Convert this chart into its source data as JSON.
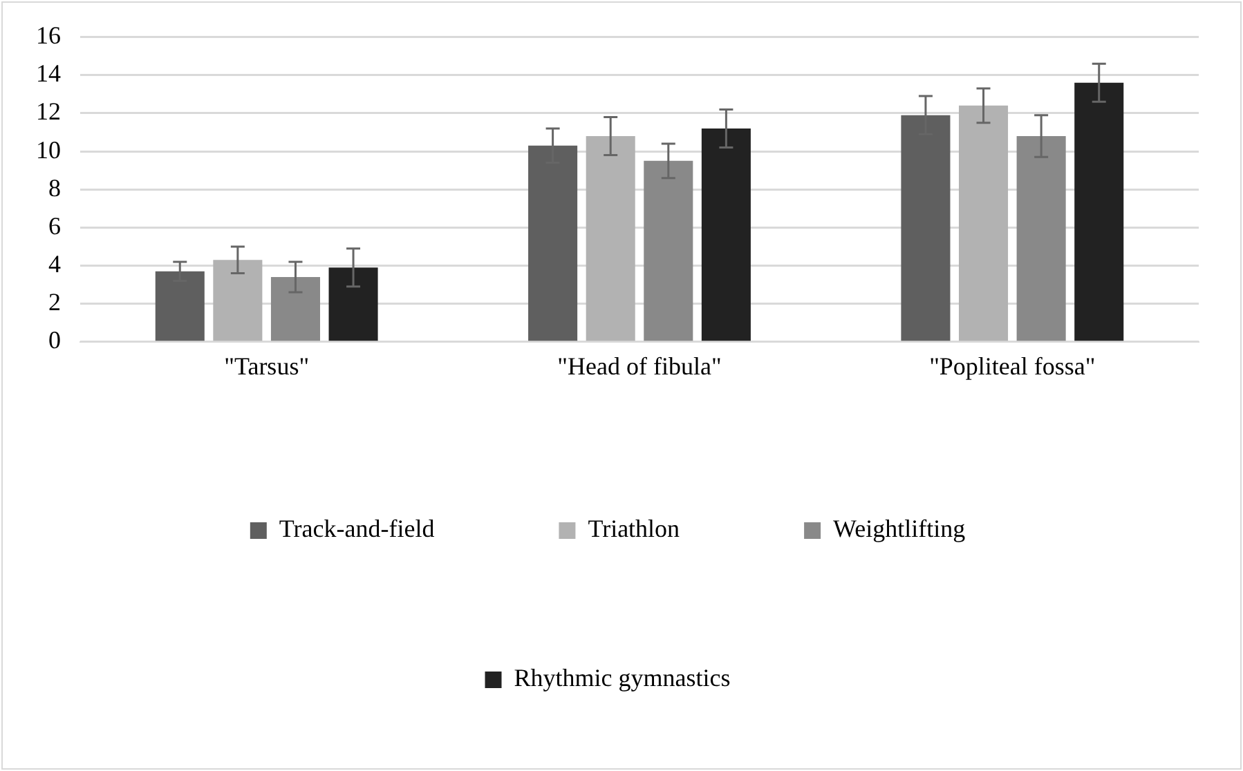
{
  "chart_data": {
    "type": "bar",
    "categories": [
      "\"Tarsus\"",
      "\"Head of fibula\"",
      "\"Popliteal fossa\""
    ],
    "series": [
      {
        "name": "Track-and-field",
        "color": "#5f5f5f",
        "values": [
          3.7,
          10.3,
          11.9
        ],
        "errors": [
          0.5,
          0.9,
          1.0
        ]
      },
      {
        "name": "Triathlon",
        "color": "#b2b2b2",
        "values": [
          4.3,
          10.8,
          12.4
        ],
        "errors": [
          0.7,
          1.0,
          0.9
        ]
      },
      {
        "name": "Weightlifting",
        "color": "#898989",
        "values": [
          3.4,
          9.5,
          10.8
        ],
        "errors": [
          0.8,
          0.9,
          1.1
        ]
      },
      {
        "name": "Rhythmic gymnastics",
        "color": "#222222",
        "values": [
          3.9,
          11.2,
          13.6
        ],
        "errors": [
          1.0,
          1.0,
          1.0
        ]
      }
    ],
    "ylim": [
      0,
      16
    ],
    "yticks": [
      0,
      2,
      4,
      6,
      8,
      10,
      12,
      14,
      16
    ],
    "grid": "y",
    "legend": "bottom"
  }
}
